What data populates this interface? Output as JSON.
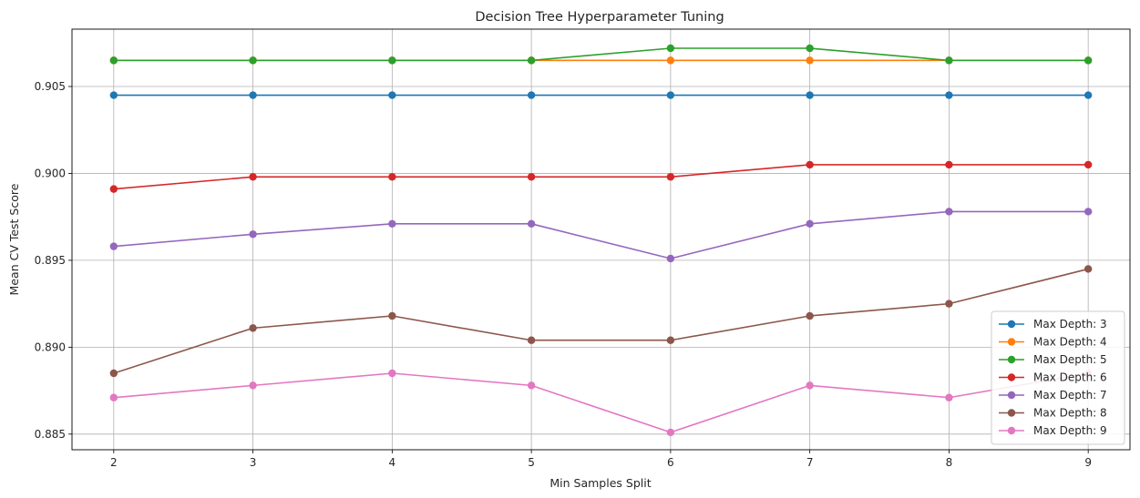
{
  "chart_data": {
    "type": "line",
    "title": "Decision Tree Hyperparameter Tuning",
    "xlabel": "Min Samples Split",
    "ylabel": "Mean CV Test Score",
    "x": [
      2,
      3,
      4,
      5,
      6,
      7,
      8,
      9
    ],
    "xticks": [
      "2",
      "3",
      "4",
      "5",
      "6",
      "7",
      "8",
      "9"
    ],
    "yticks": [
      "0.885",
      "0.890",
      "0.895",
      "0.900",
      "0.905"
    ],
    "ytick_values": [
      0.885,
      0.89,
      0.895,
      0.9,
      0.905
    ],
    "xlim": [
      1.7,
      9.3
    ],
    "ylim": [
      0.8841,
      0.9083
    ],
    "grid": true,
    "legend_position": "bottom-right",
    "series": [
      {
        "name": "Max Depth: 3",
        "color": "#1f77b4",
        "values": [
          0.9045,
          0.9045,
          0.9045,
          0.9045,
          0.9045,
          0.9045,
          0.9045,
          0.9045
        ]
      },
      {
        "name": "Max Depth: 4",
        "color": "#ff7f0e",
        "values": [
          0.9065,
          0.9065,
          0.9065,
          0.9065,
          0.9065,
          0.9065,
          0.9065,
          0.9065
        ]
      },
      {
        "name": "Max Depth: 5",
        "color": "#2ca02c",
        "values": [
          0.9065,
          0.9065,
          0.9065,
          0.9065,
          0.9072,
          0.9072,
          0.9065,
          0.9065
        ]
      },
      {
        "name": "Max Depth: 6",
        "color": "#d62728",
        "values": [
          0.8991,
          0.8998,
          0.8998,
          0.8998,
          0.8998,
          0.9005,
          0.9005,
          0.9005
        ]
      },
      {
        "name": "Max Depth: 7",
        "color": "#9467bd",
        "values": [
          0.8958,
          0.8965,
          0.8971,
          0.8971,
          0.8951,
          0.8971,
          0.8978,
          0.8978
        ]
      },
      {
        "name": "Max Depth: 8",
        "color": "#8c564b",
        "values": [
          0.8885,
          0.8911,
          0.8918,
          0.8904,
          0.8904,
          0.8918,
          0.8925,
          0.8945
        ]
      },
      {
        "name": "Max Depth: 9",
        "color": "#e377c2",
        "values": [
          0.8871,
          0.8878,
          0.8885,
          0.8878,
          0.8851,
          0.8878,
          0.8871,
          0.8885
        ]
      }
    ]
  }
}
